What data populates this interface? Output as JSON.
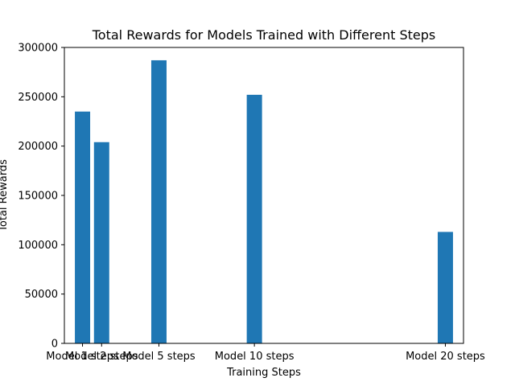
{
  "chart_data": {
    "type": "bar",
    "title": "Total Rewards for Models Trained with Different Steps",
    "xlabel": "Training Steps",
    "ylabel": "Total Rewards",
    "x": [
      1,
      2,
      5,
      10,
      20
    ],
    "categories": [
      "Model 1 steps",
      "Model 2 steps",
      "Model 5 steps",
      "Model 10 steps",
      "Model 20 steps"
    ],
    "values": [
      235000,
      204000,
      287000,
      252000,
      113000
    ],
    "ylim": [
      0,
      300000
    ],
    "yticks": [
      "0",
      "50000",
      "100000",
      "150000",
      "200000",
      "250000",
      "300000"
    ],
    "bar_color": "#1f77b4",
    "grid": false
  }
}
